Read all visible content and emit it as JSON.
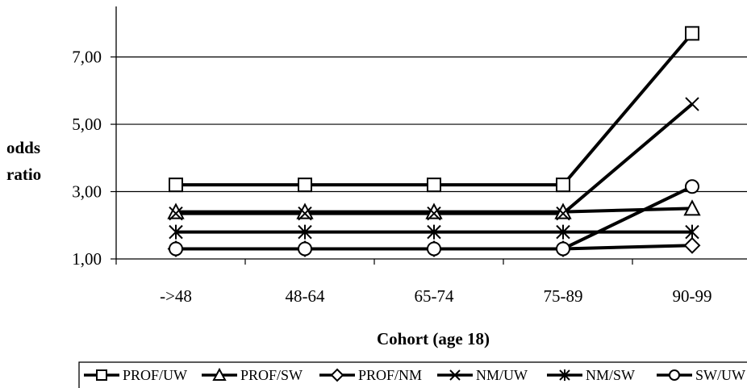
{
  "chart_data": {
    "type": "line",
    "categories": [
      "->48",
      "48-64",
      "65-74",
      "75-89",
      "90-99"
    ],
    "yticks": [
      "1,00",
      "3,00",
      "5,00",
      "7,00"
    ],
    "ylim": [
      1,
      8.5
    ],
    "grid": true,
    "ylabel_line1": "odds",
    "ylabel_line2": "ratio",
    "xlabel": "Cohort (age 18)",
    "legend_position": "bottom",
    "series": [
      {
        "name": "PROF/UW",
        "marker": "square",
        "values": [
          3.2,
          3.2,
          3.2,
          3.2,
          7.7
        ]
      },
      {
        "name": "PROF/SW",
        "marker": "triangle",
        "values": [
          2.4,
          2.4,
          2.4,
          2.4,
          2.5
        ]
      },
      {
        "name": "PROF/NM",
        "marker": "diamond",
        "values": [
          1.3,
          1.3,
          1.3,
          1.3,
          1.4
        ]
      },
      {
        "name": "NM/UW",
        "marker": "x",
        "values": [
          2.35,
          2.35,
          2.35,
          2.35,
          5.6
        ]
      },
      {
        "name": "NM/SW",
        "marker": "asterisk",
        "values": [
          1.8,
          1.8,
          1.8,
          1.8,
          1.8
        ]
      },
      {
        "name": "SW/UW",
        "marker": "circle",
        "values": [
          1.3,
          1.3,
          1.3,
          1.3,
          3.15
        ]
      }
    ]
  }
}
